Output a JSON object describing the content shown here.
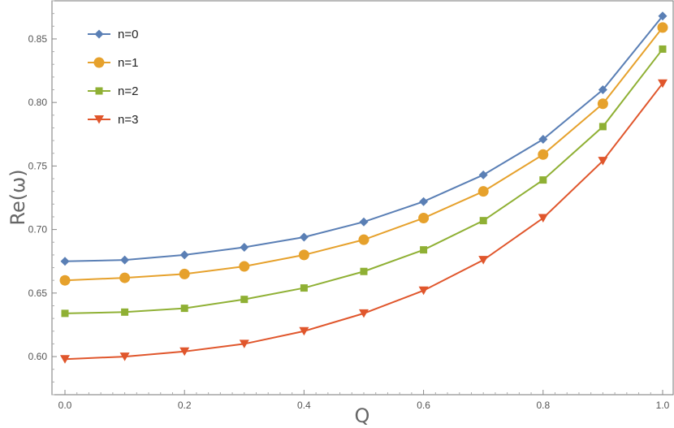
{
  "chart_data": {
    "type": "line",
    "x": [
      0.0,
      0.1,
      0.2,
      0.3,
      0.4,
      0.5,
      0.6,
      0.7,
      0.8,
      0.9,
      1.0
    ],
    "series": [
      {
        "name": "n=0",
        "color": "#5a7fb5",
        "marker": "diamond",
        "values": [
          0.675,
          0.676,
          0.68,
          0.686,
          0.694,
          0.706,
          0.722,
          0.743,
          0.771,
          0.81,
          0.868
        ]
      },
      {
        "name": "n=1",
        "color": "#e6a12c",
        "marker": "circle",
        "values": [
          0.66,
          0.662,
          0.665,
          0.671,
          0.68,
          0.692,
          0.709,
          0.73,
          0.759,
          0.799,
          0.859
        ]
      },
      {
        "name": "n=2",
        "color": "#8fb034",
        "marker": "square",
        "values": [
          0.634,
          0.635,
          0.638,
          0.645,
          0.654,
          0.667,
          0.684,
          0.707,
          0.739,
          0.781,
          0.842
        ]
      },
      {
        "name": "n=3",
        "color": "#e0562c",
        "marker": "triangle-down",
        "values": [
          0.598,
          0.6,
          0.604,
          0.61,
          0.62,
          0.634,
          0.652,
          0.676,
          0.709,
          0.754,
          0.815
        ]
      }
    ],
    "xlabel": "Q",
    "ylabel": "Re(ω)",
    "xlim": [
      0.0,
      1.0
    ],
    "ylim": [
      0.57,
      0.88
    ],
    "xticks": [
      0.0,
      0.2,
      0.4,
      0.6,
      0.8,
      1.0
    ],
    "xtick_labels": [
      "0.0",
      "0.2",
      "0.4",
      "0.6",
      "0.8",
      "1.0"
    ],
    "yticks": [
      0.6,
      0.65,
      0.7,
      0.75,
      0.8,
      0.85
    ],
    "ytick_labels": [
      "0.60",
      "0.65",
      "0.70",
      "0.75",
      "0.80",
      "0.85"
    ],
    "grid": false,
    "legend_position": "top-left"
  }
}
